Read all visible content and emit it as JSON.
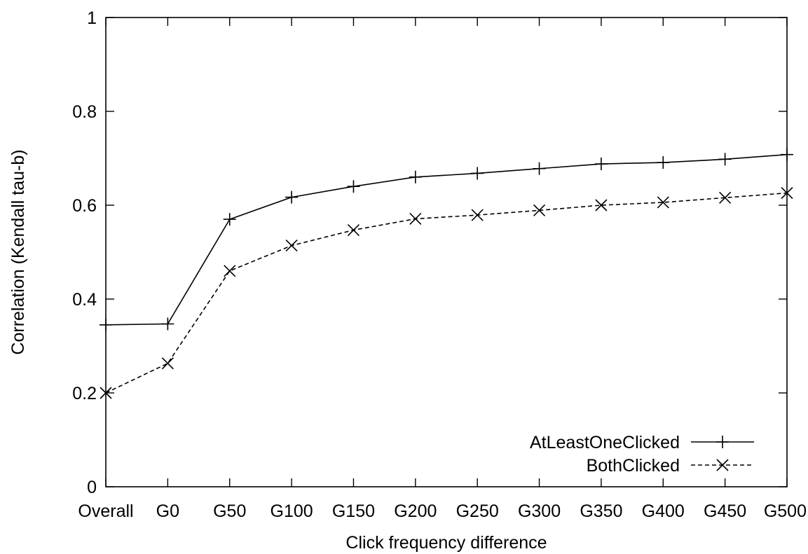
{
  "chart_data": {
    "type": "line",
    "title": "",
    "xlabel": "Click frequency difference",
    "ylabel": "Correlation (Kendall tau-b)",
    "categories": [
      "Overall",
      "G0",
      "G50",
      "G100",
      "G150",
      "G200",
      "G250",
      "G300",
      "G350",
      "G400",
      "G450",
      "G500"
    ],
    "ylim": [
      0,
      1
    ],
    "yticks": [
      "0",
      "0.2",
      "0.4",
      "0.6",
      "0.8",
      "1"
    ],
    "grid": false,
    "legend_position": "bottom-right",
    "series": [
      {
        "name": "AtLeastOneClicked",
        "marker": "plus",
        "line_style": "solid",
        "values": [
          0.345,
          0.347,
          0.57,
          0.617,
          0.64,
          0.66,
          0.668,
          0.678,
          0.688,
          0.691,
          0.698,
          0.708
        ]
      },
      {
        "name": "BothClicked",
        "marker": "cross",
        "line_style": "dashed",
        "values": [
          0.2,
          0.263,
          0.46,
          0.514,
          0.547,
          0.571,
          0.579,
          0.589,
          0.6,
          0.606,
          0.616,
          0.626
        ]
      }
    ]
  }
}
